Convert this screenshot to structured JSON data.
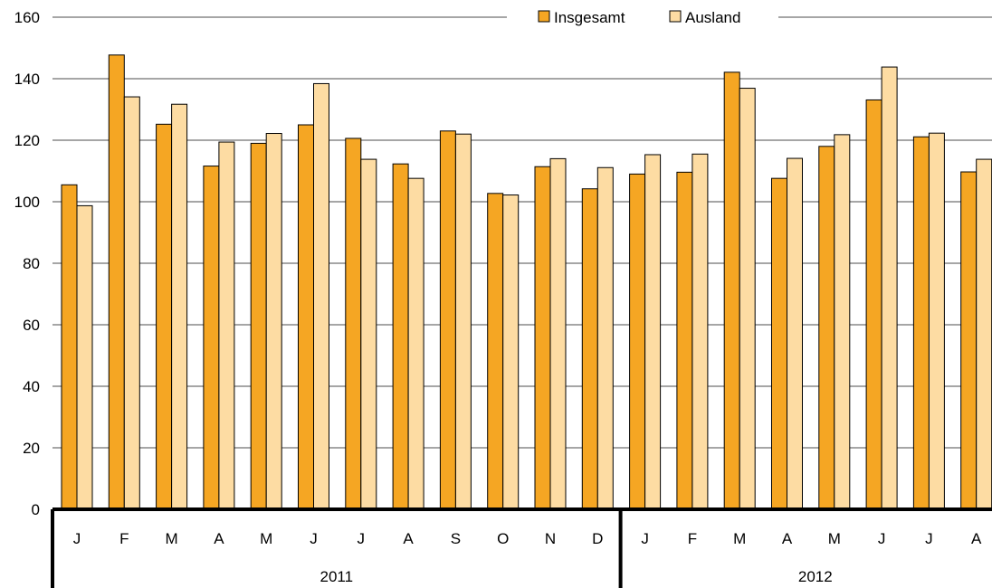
{
  "chart_data": {
    "type": "bar",
    "categories": [
      "J",
      "F",
      "M",
      "A",
      "M",
      "J",
      "J",
      "A",
      "S",
      "O",
      "N",
      "D",
      "J",
      "F",
      "M",
      "A",
      "M",
      "J",
      "J",
      "A"
    ],
    "groups": [
      {
        "label": "2011",
        "count": 12
      },
      {
        "label": "2012",
        "count": 8
      }
    ],
    "series": [
      {
        "name": "Insgesamt",
        "color": "#F5A623",
        "values": [
          105.5,
          147.7,
          125.2,
          111.6,
          119.0,
          125.0,
          120.6,
          112.3,
          123.0,
          102.7,
          111.4,
          104.2,
          109.0,
          109.6,
          142.1,
          107.6,
          118.0,
          133.1,
          121.1,
          109.7
        ]
      },
      {
        "name": "Ausland",
        "color": "#FDDCA3",
        "values": [
          98.7,
          134.1,
          131.7,
          119.4,
          122.2,
          138.4,
          113.8,
          107.6,
          122.0,
          102.2,
          114.0,
          111.1,
          115.3,
          115.5,
          136.9,
          114.1,
          121.8,
          143.8,
          122.3,
          113.8
        ]
      }
    ],
    "ylim": [
      0,
      160
    ],
    "yticks": [
      0,
      20,
      40,
      60,
      80,
      100,
      120,
      140,
      160
    ],
    "grid": true,
    "legend": "top-right"
  }
}
